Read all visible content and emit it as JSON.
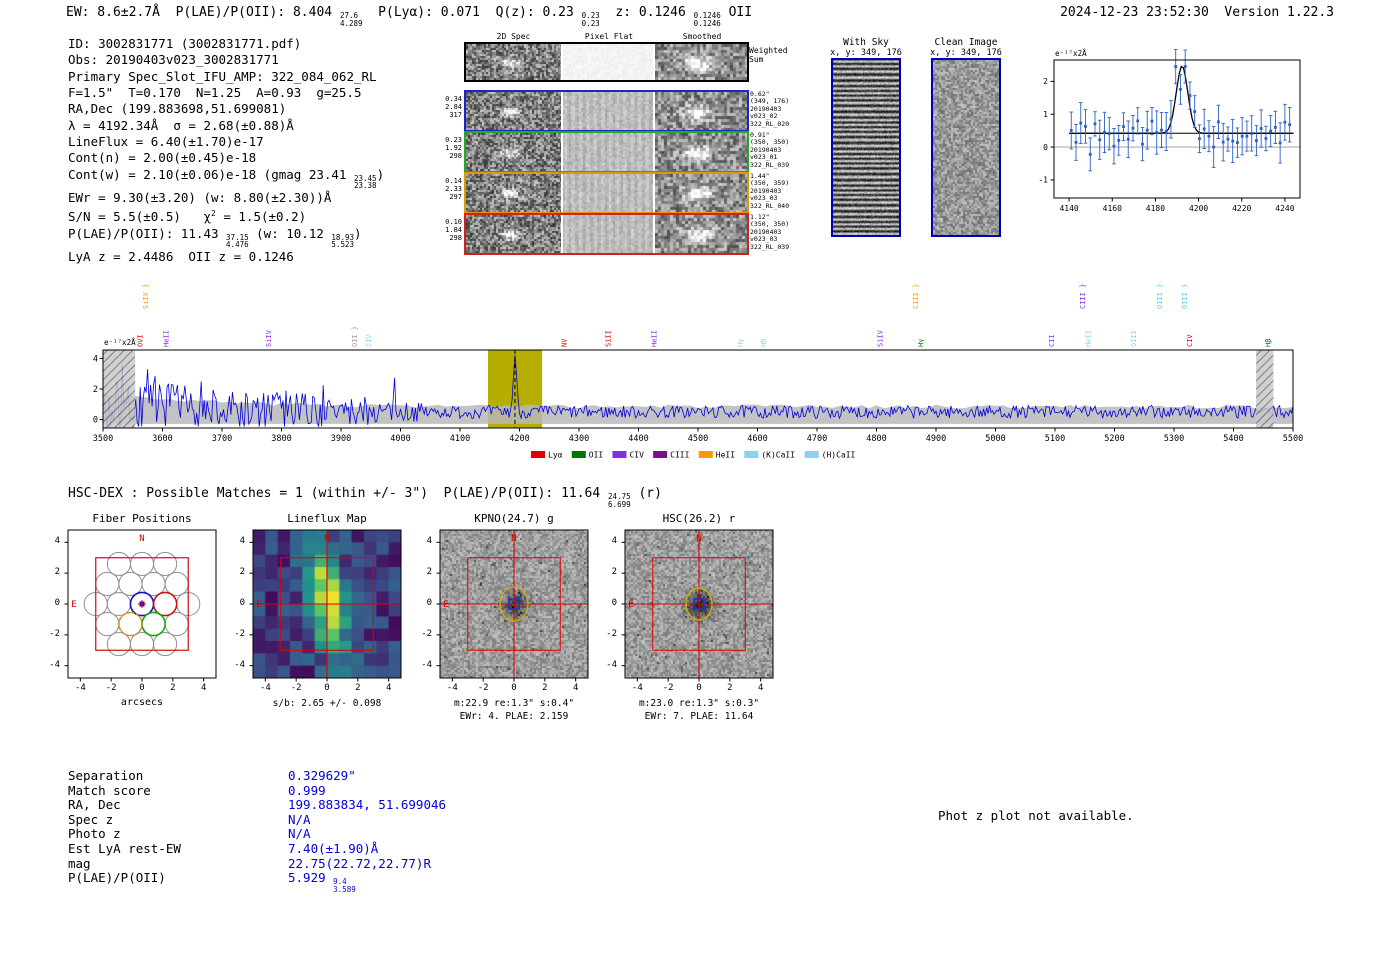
{
  "header": {
    "left": [
      {
        "t": "EW: 8.6±2.7Å  P(LAE)/P(OII): 8.404 "
      },
      {
        "f": [
          "27.6",
          "4.289"
        ]
      },
      {
        "t": "  P(Lyα): 0.071  Q(z): 0.23 "
      },
      {
        "f": [
          "0.23",
          "0.23"
        ]
      },
      {
        "t": "  z: 0.1246 "
      },
      {
        "f": [
          "0.1246",
          "0.1246"
        ]
      },
      {
        "t": " OII"
      }
    ],
    "right": "2024-12-23 23:52:30  Version 1.22.3"
  },
  "info": {
    "lines": [
      [
        {
          "t": "ID: 3002831771 (3002831771.pdf)"
        }
      ],
      [
        {
          "t": "Obs: 20190403v023_3002831771"
        }
      ],
      [
        {
          "t": "Primary Spec_Slot_IFU_AMP: 322_084_062_RL"
        }
      ],
      [
        {
          "t": "F=1.5\"  T=0.170  N=1.25  A=0.93  g=25.5"
        }
      ],
      [
        {
          "t": "RA,Dec (199.883698,51.699081)"
        }
      ],
      [
        {
          "t": "λ = 4192.34Å  σ = 2.68(±0.88)Å"
        }
      ],
      [
        {
          "t": "LineFlux = 6.40(±1.70)e-17"
        }
      ],
      [
        {
          "t": "Cont(n) = 2.00(±0.45)e-18"
        }
      ],
      [
        {
          "t": "Cont(w) = 2.10(±0.06)e-18 (gmag 23.41 "
        },
        {
          "f": [
            "23.45",
            "23.38"
          ]
        },
        {
          "t": ")"
        }
      ],
      [
        {
          "t": "EWr = 9.30(±3.20) (w: 8.80(±2.30))Å"
        }
      ],
      [
        {
          "t": "S/N = 5.5(±0.5)   χ"
        },
        {
          "s": "2"
        },
        {
          "t": " = 1.5(±0.2)"
        }
      ],
      [
        {
          "t": "P(LAE)/P(OII): 11.43 "
        },
        {
          "f": [
            "37.15",
            "4.476"
          ]
        },
        {
          "t": " (w: 10.12 "
        },
        {
          "f": [
            "18.93",
            "5.523"
          ]
        },
        {
          "t": ")"
        }
      ],
      [
        {
          "t": "LyA z = 2.4486  OII z = 0.1246"
        }
      ]
    ]
  },
  "spec2d": {
    "col_headers": [
      "2D Spec",
      "Pixel Flat",
      "Smoothed"
    ],
    "weighted_label": [
      "Weighted",
      "Sum"
    ],
    "rows": [
      {
        "color": "#2222cc",
        "left": [
          "0.34",
          "2.84",
          "317"
        ],
        "right": [
          "0.62\"",
          "(349, 176)",
          "20190403",
          "v023_02",
          "322_RL_020"
        ]
      },
      {
        "color": "#22aa22",
        "left": [
          "0.23",
          "1.92",
          "298"
        ],
        "right": [
          "0.91\"",
          "(350, 350)",
          "20190403",
          "v023_01",
          "322_RL_039"
        ]
      },
      {
        "color": "#dd9900",
        "left": [
          "0.14",
          "2.33",
          "297"
        ],
        "right": [
          "1.44\"",
          "(350, 359)",
          "20190403",
          "v023_03",
          "322_RL_040"
        ]
      },
      {
        "color": "#cc2222",
        "left": [
          "0.10",
          "1.84",
          "298"
        ],
        "right": [
          "1.12\"",
          "(350, 350)",
          "20190403",
          "v023_03",
          "322_RL_039"
        ]
      }
    ]
  },
  "with_sky": {
    "title": "With Sky",
    "coords": "x, y: 349, 176"
  },
  "clean_image": {
    "title": "Clean Image",
    "coords": "x, y: 349, 176"
  },
  "chart_data": [
    {
      "id": "emission-line-fit",
      "type": "scatter",
      "ylabel": "e⁻¹⁷x2Å",
      "x_range": [
        4133,
        4247
      ],
      "y_range": [
        -1.55,
        2.65
      ],
      "x_ticks": [
        4140,
        4160,
        4180,
        4200,
        4220,
        4240
      ],
      "y_ticks": [
        -1,
        0,
        1,
        2
      ],
      "gaussian_fit": {
        "center": 4192.34,
        "sigma": 2.68,
        "amplitude": 2.05,
        "continuum": 0.42
      },
      "marker_color": "#2a5fc8",
      "description": "observed flux points with error bars and Gaussian fit of the detected emission line at 4192.34Å"
    },
    {
      "id": "full-spectrum",
      "type": "line",
      "ylabel": "e⁻¹⁷x2Å",
      "x_range": [
        3500,
        5500
      ],
      "y_range": [
        -0.55,
        4.55
      ],
      "x_ticks": [
        3500,
        3600,
        3700,
        3800,
        3900,
        4000,
        4100,
        4200,
        4300,
        4400,
        4500,
        4600,
        4700,
        4800,
        4900,
        5000,
        5100,
        5200,
        5300,
        5400,
        5500
      ],
      "y_ticks": [
        0,
        2,
        4
      ],
      "line_color": "#0000dd",
      "detection": {
        "band": [
          4147,
          4238
        ],
        "center": 4192.34,
        "band_color": "#b5ad00"
      },
      "masked_bands": [
        [
          3500,
          3554
        ],
        [
          5438,
          5467
        ]
      ],
      "emission_labels": [
        {
          "t": "SiIV }",
          "wl": 3576,
          "c": "#ff9900",
          "row": 1
        },
        {
          "t": "OVI",
          "wl": 3566,
          "c": "#e00000",
          "row": 0
        },
        {
          "t": "HeII",
          "wl": 3610,
          "c": "#8a2be2",
          "row": 0
        },
        {
          "t": "SiIV",
          "wl": 3782,
          "c": "#8a2be2",
          "row": 0
        },
        {
          "t": "OII }",
          "wl": 3927,
          "c": "#9e9e9e",
          "row": 0
        },
        {
          "t": "CIV",
          "wl": 3950,
          "c": "#8fd0f0",
          "row": 0
        },
        {
          "t": "NV",
          "wl": 4279,
          "c": "#e00000",
          "row": 0
        },
        {
          "t": "SiII",
          "wl": 4353,
          "c": "#e00000",
          "row": 0
        },
        {
          "t": "HeII",
          "wl": 4430,
          "c": "#8a2be2",
          "row": 0
        },
        {
          "t": "Hγ",
          "wl": 4575,
          "c": "#8fd0f0",
          "row": 0
        },
        {
          "t": "Hδ",
          "wl": 4614,
          "c": "#8fd0f0",
          "row": 0
        },
        {
          "t": "SiIV",
          "wl": 4810,
          "c": "#8a2be2",
          "row": 0
        },
        {
          "t": "CIII }",
          "wl": 4870,
          "c": "#ff9900",
          "row": 1
        },
        {
          "t": "Hγ",
          "wl": 4878,
          "c": "#008000",
          "row": 0
        },
        {
          "t": "CII",
          "wl": 5098,
          "c": "#8a2be2",
          "row": 0
        },
        {
          "t": "CIII }",
          "wl": 5150,
          "c": "#8a2be2",
          "row": 1
        },
        {
          "t": "HeII",
          "wl": 5160,
          "c": "#8fd0f0",
          "row": 0
        },
        {
          "t": "OIII",
          "wl": 5236,
          "c": "#8fd0f0",
          "row": 0
        },
        {
          "t": "OIII }",
          "wl": 5280,
          "c": "#66ccee",
          "row": 1
        },
        {
          "t": "OIII }",
          "wl": 5322,
          "c": "#66ccee",
          "row": 1
        },
        {
          "t": "CIV",
          "wl": 5330,
          "c": "#e00000",
          "row": 0
        },
        {
          "t": "Hβ",
          "wl": 5462,
          "c": "#008000",
          "row": 0
        }
      ],
      "legend": [
        {
          "label": "Lyα",
          "color": "#e00000"
        },
        {
          "label": "OII",
          "color": "#007700"
        },
        {
          "label": "CIV",
          "color": "#8a2be2"
        },
        {
          "label": "CIII",
          "color": "#7a0f8a"
        },
        {
          "label": "HeII",
          "color": "#ff9900"
        },
        {
          "label": "(K)CaII",
          "color": "#8fd0f0"
        },
        {
          "label": "(H)CaII",
          "color": "#8fd0f0"
        }
      ]
    }
  ],
  "hsc_dex": {
    "segments": [
      {
        "t": "HSC-DEX : Possible Matches = 1 (within +/- 3\")  P(LAE)/P(OII): 11.64 "
      },
      {
        "f": [
          "24.75",
          "6.699"
        ]
      },
      {
        "t": " (r)"
      }
    ]
  },
  "cutouts": {
    "y_ticks": [
      4,
      2,
      0,
      -2,
      -4
    ],
    "x_ticks": [
      -4,
      -2,
      0,
      2,
      4
    ],
    "compass_n": "N",
    "compass_e": "E",
    "panels": [
      {
        "title": "Fiber Positions",
        "xlabel": "arcsecs"
      },
      {
        "title": "Lineflux Map",
        "caption1": "s/b: 2.65 +/- 0.098"
      },
      {
        "title": "KPNO(24.7) g",
        "caption1": "m:22.9 re:1.3\" s:0.4\"",
        "caption2": "EWr: 4. PLAE: 2.159"
      },
      {
        "title": "HSC(26.2) r",
        "caption1": "m:23.0 re:1.3\" s:0.3\"",
        "caption2": "EWr: 7. PLAE: 11.64"
      }
    ]
  },
  "match_table": {
    "rows": [
      {
        "label": "Separation",
        "value": [
          {
            "t": "0.329629\""
          }
        ]
      },
      {
        "label": "Match score",
        "value": [
          {
            "t": "0.999"
          }
        ]
      },
      {
        "label": "RA, Dec",
        "value": [
          {
            "t": "199.883834, 51.699046"
          }
        ]
      },
      {
        "label": "Spec z",
        "value": [
          {
            "t": "N/A"
          }
        ]
      },
      {
        "label": "Photo z",
        "value": [
          {
            "t": "N/A"
          }
        ]
      },
      {
        "label": "Est LyA rest-EW",
        "value": [
          {
            "t": "7.40(±1.90)Å"
          }
        ]
      },
      {
        "label": "mag",
        "value": [
          {
            "t": "22.75(22.72,22.77)R"
          }
        ]
      },
      {
        "label": "P(LAE)/P(OII)",
        "value": [
          {
            "t": "5.929 "
          },
          {
            "f": [
              "9.4",
              "3.589"
            ]
          }
        ]
      }
    ]
  },
  "photz_note": "Phot z plot not available.",
  "colors": {
    "value_text": "#0000dd",
    "compass": "#cc0000",
    "image_frame": "#0000bb"
  }
}
